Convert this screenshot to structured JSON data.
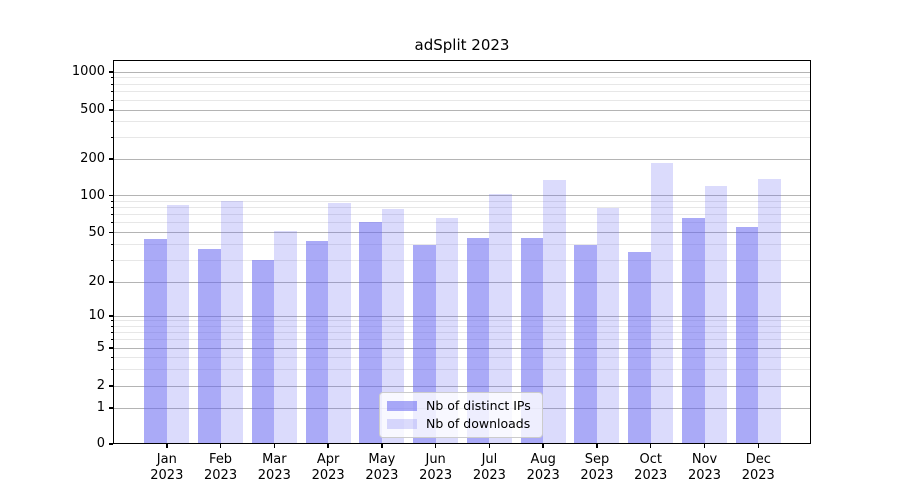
{
  "chart_data": {
    "type": "bar",
    "title": "adSplit 2023",
    "categories": [
      "Jan",
      "Feb",
      "Mar",
      "Apr",
      "May",
      "Jun",
      "Jul",
      "Aug",
      "Sep",
      "Oct",
      "Nov",
      "Dec"
    ],
    "x_tick_second_line": "2023",
    "series": [
      {
        "name": "Nb of distinct IPs",
        "color": "rgba(100,100,240,0.55)",
        "values": [
          44,
          37,
          30,
          43,
          61,
          40,
          45,
          45,
          40,
          35,
          66,
          55
        ]
      },
      {
        "name": "Nb of downloads",
        "color": "rgba(100,100,240,0.23)",
        "values": [
          84,
          90,
          51,
          87,
          78,
          66,
          102,
          134,
          79,
          184,
          120,
          138
        ]
      }
    ],
    "xlabel": "",
    "ylabel": "",
    "yscale": "symlog",
    "ylim": [
      0,
      1000
    ],
    "yticks_major": [
      0,
      1,
      2,
      5,
      10,
      20,
      50,
      100,
      200,
      500,
      1000
    ],
    "yticks_minor": [
      3,
      4,
      6,
      7,
      8,
      9,
      30,
      40,
      60,
      70,
      80,
      90,
      300,
      400,
      600,
      700,
      800,
      900
    ],
    "grid": "horizontal major+minor",
    "legend_position": "lower center",
    "colors": {
      "bar_ips": "rgba(100,100,240,0.55)",
      "bar_downloads": "rgba(100,100,240,0.23)",
      "major_grid": "#b4b4b4",
      "minor_grid": "#e7e7e7",
      "axis_frame": "#000000",
      "text": "#000000",
      "legend_border": "#cccccc"
    }
  }
}
